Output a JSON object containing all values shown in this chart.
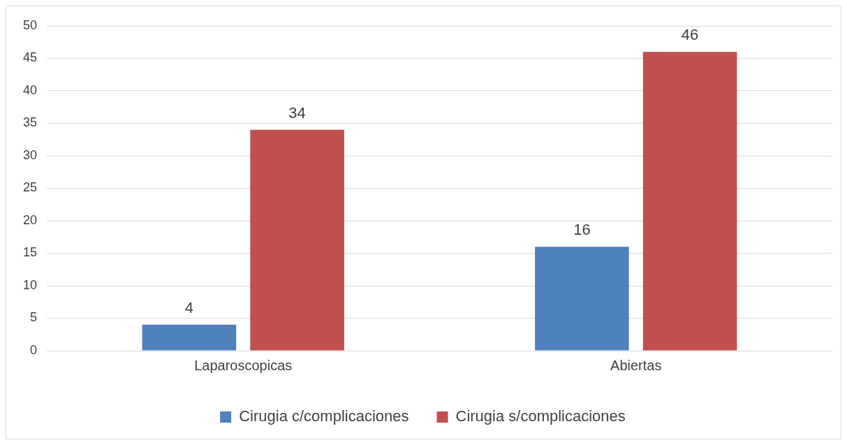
{
  "chart_data": {
    "type": "bar",
    "categories": [
      "Laparoscopicas",
      "Abiertas"
    ],
    "series": [
      {
        "name": "Cirugia c/complicaciones",
        "color": "#4f81bd",
        "values": [
          4,
          16
        ]
      },
      {
        "name": "Cirugia s/complicaciones",
        "color": "#c0504d",
        "values": [
          34,
          46
        ]
      }
    ],
    "ylim": [
      0,
      50
    ],
    "yticks": [
      0,
      5,
      10,
      15,
      20,
      25,
      30,
      35,
      40,
      45,
      50
    ],
    "grid": "y",
    "legend": "bottom",
    "data_labels": true
  }
}
